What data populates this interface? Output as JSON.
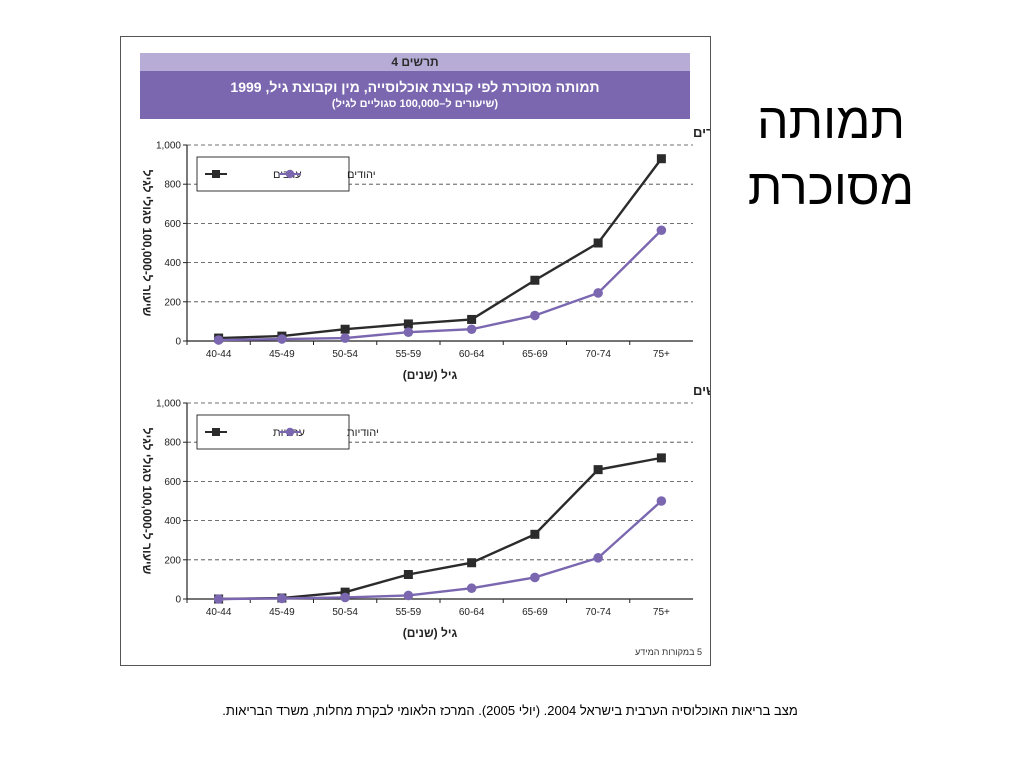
{
  "slide": {
    "title_line1": "תמותה",
    "title_line2": "מסוכרת",
    "caption": "מצב בריאות האוכלוסיה הערבית בישראל 2004. (יולי 2005). המרכז הלאומי לבקרת מחלות, משרד הבריאות."
  },
  "figure": {
    "number_label": "תרשים 4",
    "title": "תמותה מסוכרת לפי קבוצת אוכלוסייה, מין וקבוצת גיל, 1999",
    "subtitle": "(שיעורים ל–100,000 סגוליים לגיל)",
    "source_note": "5 במקורות המידע"
  },
  "chart_data": [
    {
      "type": "line",
      "panel_label": "גברים",
      "categories": [
        "40-44",
        "45-49",
        "50-54",
        "55-59",
        "60-64",
        "65-69",
        "70-74",
        "75+"
      ],
      "series": [
        {
          "name": "ערבים",
          "values": [
            15,
            25,
            60,
            87,
            110,
            310,
            500,
            930
          ],
          "color": "#2b2b2b",
          "marker": "square"
        },
        {
          "name": "יהודים",
          "values": [
            5,
            10,
            15,
            45,
            60,
            130,
            245,
            565
          ],
          "color": "#7a67b0",
          "marker": "circle"
        }
      ],
      "ylim": [
        0,
        1000
      ],
      "yticks": [
        0,
        200,
        400,
        600,
        800,
        1000
      ],
      "ytick_labels": [
        "0",
        "200",
        "400",
        "600",
        "800",
        "1,000"
      ],
      "xlabel": "גיל (שנים)",
      "ylabel": "שיעור ל-100,000 סגולי לגיל",
      "grid": true,
      "legend_position": "top-left"
    },
    {
      "type": "line",
      "panel_label": "נשים",
      "categories": [
        "40-44",
        "45-49",
        "50-54",
        "55-59",
        "60-64",
        "65-69",
        "70-74",
        "75+"
      ],
      "series": [
        {
          "name": "ערביות",
          "values": [
            0,
            5,
            35,
            125,
            185,
            330,
            660,
            720
          ],
          "color": "#2b2b2b",
          "marker": "square"
        },
        {
          "name": "יהודיות",
          "values": [
            0,
            3,
            8,
            18,
            55,
            110,
            210,
            500
          ],
          "color": "#7a67b0",
          "marker": "circle"
        }
      ],
      "ylim": [
        0,
        1000
      ],
      "yticks": [
        0,
        200,
        400,
        600,
        800,
        1000
      ],
      "ytick_labels": [
        "0",
        "200",
        "400",
        "600",
        "800",
        "1,000"
      ],
      "xlabel": "גיל (שנים)",
      "ylabel": "שיעור ל-100,000 סגולי לגיל",
      "grid": true,
      "legend_position": "top-left"
    }
  ]
}
